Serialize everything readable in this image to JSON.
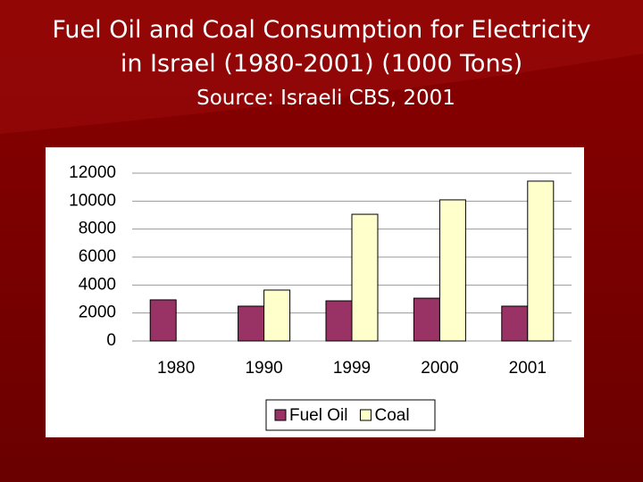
{
  "chart_data": {
    "type": "bar",
    "title": [
      "Fuel Oil and Coal Consumption for Electricity",
      "in Israel (1980-2001) (1000 Tons)"
    ],
    "subtitle": "Source: Israeli CBS, 2001",
    "categories": [
      "1980",
      "1990",
      "1999",
      "2000",
      "2001"
    ],
    "series": [
      {
        "name": "Fuel Oil",
        "color": "#993366",
        "values": [
          2940,
          2490,
          2870,
          3060,
          2490
        ]
      },
      {
        "name": "Coal",
        "color": "#ffffcc",
        "values": [
          null,
          3640,
          9060,
          10090,
          11430
        ]
      }
    ],
    "ylim": [
      0,
      12000
    ],
    "yticks": [
      0,
      2000,
      4000,
      6000,
      8000,
      10000,
      12000
    ],
    "grid": true,
    "legend": "bottom"
  }
}
